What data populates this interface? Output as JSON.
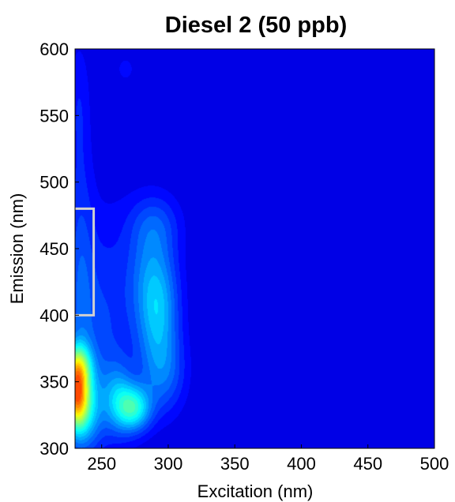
{
  "chart_data": {
    "type": "heatmap",
    "title": "Diesel 2 (50 ppb)",
    "xlabel": "Excitation (nm)",
    "ylabel": "Emission (nm)",
    "xlim": [
      230,
      500
    ],
    "ylim": [
      300,
      600
    ],
    "xticks": [
      250,
      300,
      350,
      400,
      450,
      500
    ],
    "yticks": [
      300,
      350,
      400,
      450,
      500,
      550,
      600
    ],
    "colormap": "jet",
    "grid": false,
    "background_level": 0.0,
    "peaks": [
      {
        "x": 231,
        "y": 340,
        "sx": 6,
        "sy": 16,
        "level": 0.62
      },
      {
        "x": 232,
        "y": 362,
        "sx": 7,
        "sy": 12,
        "level": 0.4
      },
      {
        "x": 236,
        "y": 330,
        "sx": 10,
        "sy": 20,
        "level": 0.32
      },
      {
        "x": 274,
        "y": 330,
        "sx": 9,
        "sy": 12,
        "level": 0.4
      },
      {
        "x": 262,
        "y": 338,
        "sx": 8,
        "sy": 18,
        "level": 0.2
      },
      {
        "x": 292,
        "y": 400,
        "sx": 11,
        "sy": 26,
        "level": 0.26
      },
      {
        "x": 288,
        "y": 438,
        "sx": 13,
        "sy": 28,
        "level": 0.18
      },
      {
        "x": 296,
        "y": 356,
        "sx": 12,
        "sy": 22,
        "level": 0.19
      },
      {
        "x": 250,
        "y": 390,
        "sx": 18,
        "sy": 60,
        "level": 0.14
      },
      {
        "x": 234,
        "y": 430,
        "sx": 7,
        "sy": 70,
        "level": 0.12
      },
      {
        "x": 290,
        "y": 470,
        "sx": 14,
        "sy": 16,
        "level": 0.1
      },
      {
        "x": 233,
        "y": 560,
        "sx": 6,
        "sy": 35,
        "level": 0.07
      },
      {
        "x": 268,
        "y": 585,
        "sx": 10,
        "sy": 14,
        "level": 0.05
      }
    ],
    "annotation_bracket": {
      "x": [
        230,
        244
      ],
      "y": [
        400,
        480
      ],
      "color": "#d0d0d0"
    }
  }
}
